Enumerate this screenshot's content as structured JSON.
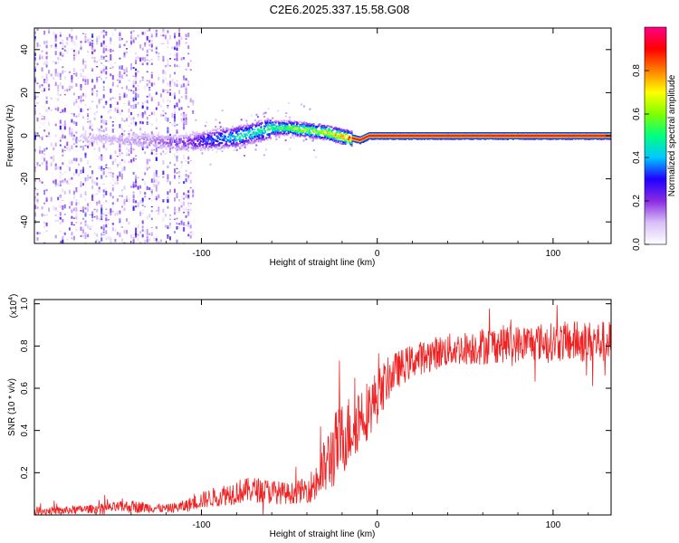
{
  "figure_title": "C2E6.2025.337.15.58.G08",
  "colors": {
    "snr_line": "#ee2222",
    "ridge_core": "#ff1010",
    "ridge_mid": "#ffd000",
    "ridge_outer": "#00cc44",
    "ridge_edge": "#0044ff",
    "scatter_dense": "#6600cc",
    "scatter_light": "#c8a8f0"
  },
  "chart_data": [
    {
      "type": "heatmap",
      "name": "spectrogram",
      "xlabel": "Height of straight line (km)",
      "ylabel": "Frequency (Hz)",
      "xlim": [
        -195,
        133
      ],
      "ylim": [
        -50,
        50
      ],
      "xticks": [
        -100,
        0,
        100
      ],
      "xtick_labels": [
        "-100",
        "0",
        "100"
      ],
      "yticks": [
        -40,
        -20,
        0,
        20,
        40
      ],
      "ytick_labels": [
        "-40",
        "-20",
        "0",
        "20",
        "40"
      ],
      "grid": false,
      "colorbar": {
        "label": "Normalized spectral amplitude",
        "range": [
          0,
          1
        ],
        "ticks": [
          0.0,
          0.2,
          0.4,
          0.6,
          0.8
        ],
        "tick_labels": [
          "0.0",
          "0.2",
          "0.4",
          "0.6",
          "0.8"
        ],
        "colormap": [
          "#ffffff",
          "#d8c0f8",
          "#8a2be2",
          "#2000ff",
          "#00c8ff",
          "#00ff80",
          "#80ff00",
          "#ffff00",
          "#ff8000",
          "#ff0000",
          "#ff0088"
        ]
      },
      "ridge": {
        "description": "Frequency of peak amplitude versus height",
        "x": [
          -195,
          -160,
          -130,
          -110,
          -100,
          -90,
          -80,
          -70,
          -60,
          -50,
          -40,
          -30,
          -25,
          -20,
          -15,
          -10,
          -5,
          0,
          20,
          40,
          60,
          80,
          100,
          120,
          133
        ],
        "freq": [
          0,
          -1,
          -2,
          -3,
          -2,
          -1,
          0,
          2,
          4,
          4,
          3,
          2,
          1,
          0,
          -1,
          -2,
          0,
          0,
          0,
          0,
          0,
          0,
          0,
          0,
          0
        ],
        "peak_amplitude": [
          0.05,
          0.1,
          0.15,
          0.2,
          0.3,
          0.4,
          0.5,
          0.5,
          0.55,
          0.6,
          0.65,
          0.7,
          0.75,
          0.8,
          0.9,
          0.95,
          0.95,
          0.95,
          0.95,
          0.95,
          0.95,
          0.95,
          0.95,
          0.95,
          0.95
        ]
      },
      "noise_region_x": [
        -195,
        -105
      ]
    },
    {
      "type": "line",
      "name": "snr",
      "xlabel": "Height of straight line (km)",
      "ylabel": "SNR (10 * v/v)",
      "y_multiplier_label": "(x10",
      "y_multiplier_exponent": "4",
      "y_multiplier_close": ")",
      "xlim": [
        -195,
        133
      ],
      "ylim": [
        0,
        1.02
      ],
      "xticks": [
        -100,
        0,
        100
      ],
      "xtick_labels": [
        "-100",
        "0",
        "100"
      ],
      "yticks": [
        0.2,
        0.4,
        0.6,
        0.8,
        1.0
      ],
      "ytick_labels": [
        "0.2",
        "0.4",
        "0.6",
        "0.8",
        "1.0"
      ],
      "grid": false,
      "series": [
        {
          "name": "SNR",
          "x": [
            -195,
            -180,
            -160,
            -140,
            -120,
            -110,
            -100,
            -90,
            -80,
            -70,
            -60,
            -50,
            -40,
            -35,
            -30,
            -25,
            -20,
            -15,
            -10,
            -5,
            0,
            5,
            10,
            20,
            30,
            40,
            50,
            60,
            70,
            80,
            90,
            100,
            110,
            120,
            133
          ],
          "y": [
            0.02,
            0.02,
            0.03,
            0.04,
            0.03,
            0.04,
            0.07,
            0.09,
            0.11,
            0.12,
            0.11,
            0.1,
            0.12,
            0.15,
            0.22,
            0.3,
            0.36,
            0.41,
            0.47,
            0.5,
            0.56,
            0.63,
            0.68,
            0.73,
            0.76,
            0.78,
            0.79,
            0.8,
            0.81,
            0.81,
            0.82,
            0.82,
            0.82,
            0.82,
            0.82
          ],
          "noise_amplitude": [
            0.02,
            0.02,
            0.02,
            0.03,
            0.02,
            0.03,
            0.04,
            0.05,
            0.06,
            0.06,
            0.06,
            0.05,
            0.06,
            0.1,
            0.14,
            0.18,
            0.18,
            0.17,
            0.16,
            0.14,
            0.13,
            0.11,
            0.09,
            0.08,
            0.08,
            0.08,
            0.08,
            0.09,
            0.09,
            0.09,
            0.09,
            0.09,
            0.1,
            0.1,
            0.1
          ]
        }
      ]
    }
  ]
}
